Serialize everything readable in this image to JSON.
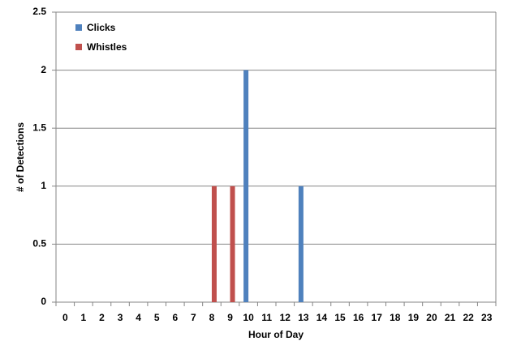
{
  "chart_data": {
    "type": "bar",
    "x_label": "Hour of Day",
    "y_label": "# of Detections",
    "categories": [
      "0",
      "1",
      "2",
      "3",
      "4",
      "5",
      "6",
      "7",
      "8",
      "9",
      "10",
      "11",
      "12",
      "13",
      "14",
      "15",
      "16",
      "17",
      "18",
      "19",
      "20",
      "21",
      "22",
      "23"
    ],
    "series": [
      {
        "name": "Clicks",
        "color": "#4f81bd",
        "values": [
          0,
          0,
          0,
          0,
          0,
          0,
          0,
          0,
          0,
          0,
          2,
          0,
          0,
          1,
          0,
          0,
          0,
          0,
          0,
          0,
          0,
          0,
          0,
          0
        ]
      },
      {
        "name": "Whistles",
        "color": "#c0504d",
        "values": [
          0,
          0,
          0,
          0,
          0,
          0,
          0,
          0,
          1,
          1,
          0,
          0,
          0,
          0,
          0,
          0,
          0,
          0,
          0,
          0,
          0,
          0,
          0,
          0
        ]
      }
    ],
    "ylim": [
      0,
      2.5
    ],
    "yticks": [
      0,
      0.5,
      1,
      1.5,
      2,
      2.5
    ],
    "grid": true,
    "legend": "top-left"
  }
}
